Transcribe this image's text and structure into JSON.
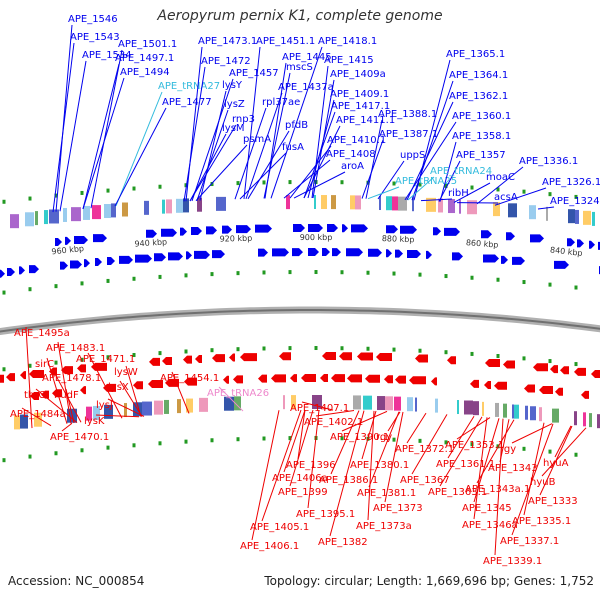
{
  "title": "Aeropyrum pernix K1, complete genome",
  "footer": {
    "accession": "Accession: NC_000854",
    "summary": "Topology: circular; Length: 1,669,696 bp; Genes: 1,752"
  },
  "colors": {
    "forward_strand": "#0000ee",
    "reverse_strand": "#ee0000",
    "trna": "#33bbdd",
    "trna_reverse": "#ee88cc",
    "axis": "#888888",
    "tick": "#229922"
  },
  "scale_ticks": [
    "960 kbp",
    "940 kbp",
    "920 kbp",
    "900 kbp",
    "880 kbp",
    "860 kbp",
    "840 kbp"
  ],
  "forward_labels": [
    "APE_1546",
    "APE_1543",
    "APE_1534",
    "APE_1501.1",
    "APE_1497.1",
    "APE_1494",
    "APE_tRNA27",
    "APE_1477",
    "APE_1473.1",
    "APE_1472",
    "lysY",
    "lysZ",
    "lysM",
    "APE_1457",
    "rnp3",
    "psmA",
    "APE_1451.1",
    "APE_1445",
    "mscS",
    "rpl37ae",
    "APE_1437a",
    "pfdB",
    "fusA",
    "APE_1418.1",
    "APE_1415",
    "APE_1409a",
    "APE_1409.1",
    "APE_1417.1",
    "APE_1411.1",
    "APE_1410.1",
    "APE_1408",
    "aroA",
    "APE_1388.1",
    "APE_1387.1",
    "uppS",
    "APE_tRNA25",
    "APE_1365.1",
    "APE_1364.1",
    "APE_1362.1",
    "APE_1360.1",
    "APE_1358.1",
    "APE_1357",
    "APE_tRNA24",
    "ribH",
    "moaC",
    "acsA",
    "APE_1336.1",
    "APE_1326.1",
    "APE_1324"
  ],
  "reverse_labels": [
    "APE_1495a",
    "APE_1483.1",
    "sirC",
    "APE_1478.1",
    "APE_1471.1",
    "thrC",
    "nudF",
    "lysW",
    "lysX",
    "APE_1484a",
    "lysJ",
    "lysK",
    "APE_1470.1",
    "APE_1454.1",
    "APE_tRNA26",
    "APE_1407.1",
    "APE_1402.1",
    "APE_1390.1",
    "rgy",
    "APE_1372.1",
    "APE_1361.1",
    "APE_1353.1",
    "rgy",
    "APE_1396",
    "APE_1380.1",
    "APE_1406a",
    "APE_1386.1",
    "APE_1367",
    "APE_1363.1",
    "APE_1343",
    "hyuA",
    "APE_1399",
    "APE_1381.1",
    "APE_1343a.1",
    "hyuB",
    "APE_1395.1",
    "APE_1373",
    "APE_1345",
    "APE_1333",
    "APE_1405.1",
    "APE_1373a",
    "APE_1346a",
    "APE_1335.1",
    "APE_1406.1",
    "APE_1382",
    "APE_1337.1",
    "APE_1339.1"
  ]
}
